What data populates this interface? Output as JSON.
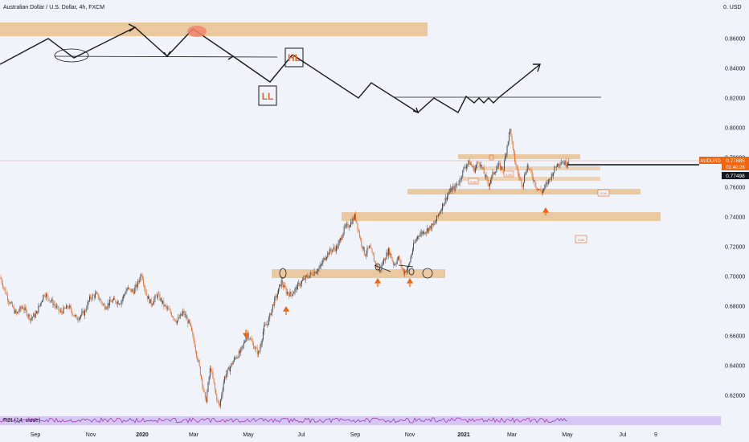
{
  "header": {
    "title": "Australian Dollar / U.S. Dollar, 4h, FXCM",
    "currency": "0. USD"
  },
  "price_tag": {
    "symbol": "AUDUSD",
    "price": "0.77885",
    "countdown": "01:40:26",
    "line_price": "0.77498"
  },
  "rsi_label": "RSI (14, close)",
  "annotations": {
    "hl": "HL",
    "ll": "LL",
    "box_small_1": "0.00",
    "box_small_2": "0.00",
    "box_small_3": "0.00",
    "box_small_4": "0.00"
  },
  "colors": {
    "background": "#f0f3fa",
    "zone": "#e9bf8f",
    "candle_up": "#3d3d3d",
    "candle_down": "#e8681e",
    "accent": "#f0660f",
    "rsi_line": "#9c27b0",
    "rsi_band": "#c9b3ef",
    "sketch": "#1a1a1a"
  },
  "chart_data": {
    "type": "candlestick",
    "title": "Australian Dollar / U.S. Dollar, 4h, FXCM",
    "ylim": [
      0.608,
      0.872
    ],
    "yticks": [
      "0.62000",
      "0.64000",
      "0.66000",
      "0.68000",
      "0.70000",
      "0.72000",
      "0.74000",
      "0.76000",
      "0.78000",
      "0.80000",
      "0.82000",
      "0.84000",
      "0.86000"
    ],
    "x_labels": [
      "Sep",
      "Nov",
      "2020",
      "Mar",
      "May",
      "Jul",
      "Sep",
      "Nov",
      "2021",
      "Mar",
      "May",
      "Jul",
      "9"
    ],
    "price_path": [
      [
        0,
        0.7
      ],
      [
        10,
        0.685
      ],
      [
        20,
        0.675
      ],
      [
        28,
        0.68
      ],
      [
        38,
        0.672
      ],
      [
        45,
        0.675
      ],
      [
        55,
        0.689
      ],
      [
        65,
        0.683
      ],
      [
        75,
        0.676
      ],
      [
        85,
        0.68
      ],
      [
        95,
        0.672
      ],
      [
        105,
        0.676
      ],
      [
        112,
        0.686
      ],
      [
        120,
        0.688
      ],
      [
        130,
        0.68
      ],
      [
        140,
        0.684
      ],
      [
        150,
        0.683
      ],
      [
        158,
        0.692
      ],
      [
        166,
        0.69
      ],
      [
        172,
        0.696
      ],
      [
        176,
        0.703
      ],
      [
        182,
        0.688
      ],
      [
        188,
        0.682
      ],
      [
        196,
        0.688
      ],
      [
        205,
        0.68
      ],
      [
        212,
        0.676
      ],
      [
        220,
        0.67
      ],
      [
        228,
        0.676
      ],
      [
        236,
        0.668
      ],
      [
        242,
        0.655
      ],
      [
        247,
        0.642
      ],
      [
        252,
        0.628
      ],
      [
        256,
        0.615
      ],
      [
        262,
        0.64
      ],
      [
        268,
        0.622
      ],
      [
        273,
        0.612
      ],
      [
        279,
        0.632
      ],
      [
        285,
        0.638
      ],
      [
        292,
        0.645
      ],
      [
        300,
        0.65
      ],
      [
        308,
        0.662
      ],
      [
        315,
        0.654
      ],
      [
        322,
        0.648
      ],
      [
        328,
        0.665
      ],
      [
        334,
        0.67
      ],
      [
        340,
        0.682
      ],
      [
        345,
        0.688
      ],
      [
        350,
        0.697
      ],
      [
        356,
        0.69
      ],
      [
        362,
        0.688
      ],
      [
        368,
        0.692
      ],
      [
        374,
        0.696
      ],
      [
        382,
        0.7
      ],
      [
        390,
        0.703
      ],
      [
        398,
        0.706
      ],
      [
        405,
        0.714
      ],
      [
        412,
        0.718
      ],
      [
        420,
        0.72
      ],
      [
        428,
        0.732
      ],
      [
        436,
        0.736
      ],
      [
        442,
        0.741
      ],
      [
        448,
        0.726
      ],
      [
        454,
        0.715
      ],
      [
        460,
        0.72
      ],
      [
        465,
        0.712
      ],
      [
        472,
        0.703
      ],
      [
        478,
        0.712
      ],
      [
        484,
        0.718
      ],
      [
        490,
        0.708
      ],
      [
        496,
        0.713
      ],
      [
        502,
        0.703
      ],
      [
        508,
        0.706
      ],
      [
        514,
        0.72
      ],
      [
        520,
        0.728
      ],
      [
        526,
        0.73
      ],
      [
        532,
        0.732
      ],
      [
        540,
        0.735
      ],
      [
        548,
        0.745
      ],
      [
        554,
        0.752
      ],
      [
        560,
        0.758
      ],
      [
        566,
        0.76
      ],
      [
        572,
        0.765
      ],
      [
        578,
        0.774
      ],
      [
        584,
        0.777
      ],
      [
        590,
        0.772
      ],
      [
        596,
        0.778
      ],
      [
        602,
        0.77
      ],
      [
        608,
        0.762
      ],
      [
        614,
        0.77
      ],
      [
        620,
        0.775
      ],
      [
        626,
        0.772
      ],
      [
        632,
        0.792
      ],
      [
        635,
        0.8
      ],
      [
        638,
        0.785
      ],
      [
        644,
        0.77
      ],
      [
        650,
        0.762
      ],
      [
        656,
        0.775
      ],
      [
        662,
        0.768
      ],
      [
        668,
        0.76
      ],
      [
        674,
        0.757
      ],
      [
        680,
        0.762
      ],
      [
        686,
        0.768
      ],
      [
        692,
        0.775
      ],
      [
        698,
        0.778
      ],
      [
        704,
        0.776
      ],
      [
        708,
        0.7788
      ]
    ]
  }
}
